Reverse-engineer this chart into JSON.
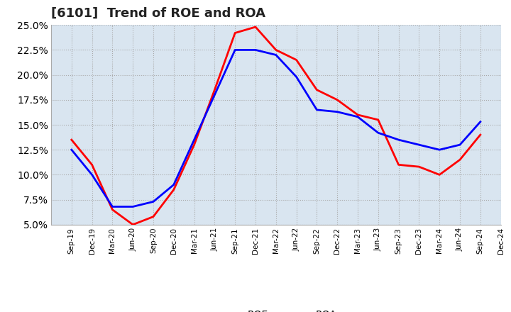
{
  "title": "[6101]  Trend of ROE and ROA",
  "x_labels": [
    "Sep-19",
    "Dec-19",
    "Mar-20",
    "Jun-20",
    "Sep-20",
    "Dec-20",
    "Mar-21",
    "Jun-21",
    "Sep-21",
    "Dec-21",
    "Mar-22",
    "Jun-22",
    "Sep-22",
    "Dec-22",
    "Mar-23",
    "Jun-23",
    "Sep-23",
    "Dec-23",
    "Mar-24",
    "Jun-24",
    "Sep-24",
    "Dec-24"
  ],
  "roe": [
    13.5,
    11.0,
    6.5,
    5.0,
    5.8,
    8.5,
    13.0,
    18.5,
    24.2,
    24.8,
    22.5,
    21.5,
    18.5,
    17.5,
    16.0,
    15.5,
    11.0,
    10.8,
    10.0,
    11.5,
    14.0,
    null
  ],
  "roa": [
    12.5,
    10.0,
    6.8,
    6.8,
    7.3,
    9.0,
    13.5,
    18.0,
    22.5,
    22.5,
    22.0,
    19.8,
    16.5,
    16.3,
    15.8,
    14.2,
    13.5,
    13.0,
    12.5,
    13.0,
    15.3,
    null
  ],
  "roe_color": "#ff0000",
  "roa_color": "#0000ff",
  "ylim_min": 5.0,
  "ylim_max": 25.0,
  "yticks": [
    5.0,
    7.5,
    10.0,
    12.5,
    15.0,
    17.5,
    20.0,
    22.5,
    25.0
  ],
  "bg_color": "#ffffff",
  "plot_bg_color": "#d9e5f0",
  "grid_color": "#aaaaaa",
  "title_fontsize": 13,
  "legend_entries": [
    "ROE",
    "ROA"
  ]
}
